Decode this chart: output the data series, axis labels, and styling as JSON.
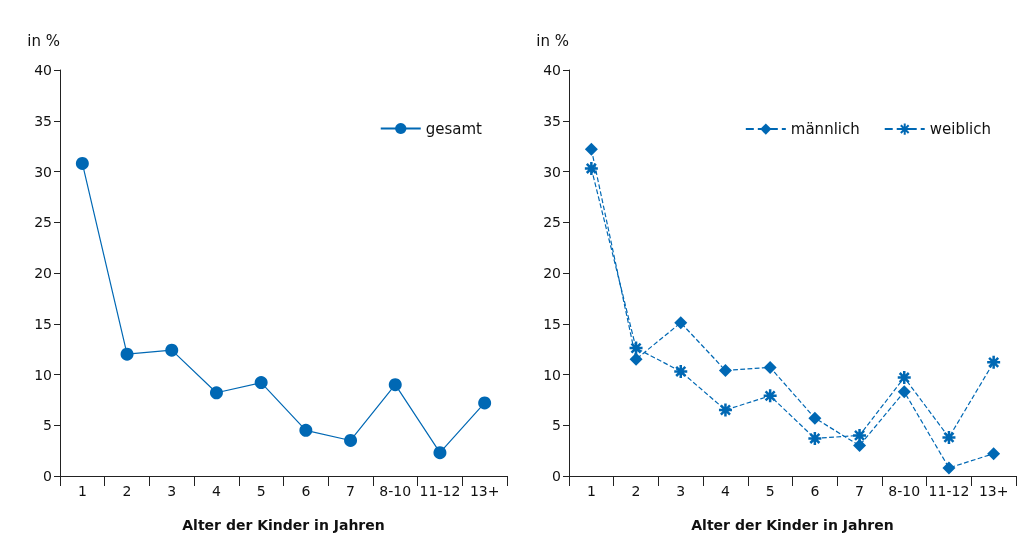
{
  "chart_data": [
    {
      "type": "line",
      "ylabel": "in %",
      "xlabel": "Alter der Kinder in Jahren",
      "categories": [
        "1",
        "2",
        "3",
        "4",
        "5",
        "6",
        "7",
        "8-10",
        "11-12",
        "13+"
      ],
      "series": [
        {
          "name": "gesamt",
          "color": "#0068b4",
          "values": [
            30.8,
            12.0,
            12.4,
            8.2,
            9.2,
            4.5,
            3.5,
            9.0,
            2.3,
            7.2
          ]
        }
      ],
      "ylim": [
        0,
        40
      ],
      "yticks": [
        0,
        5,
        10,
        15,
        20,
        25,
        30,
        35,
        40
      ],
      "grid": false,
      "legend": "top right",
      "marker": "circle",
      "line_style": "solid"
    },
    {
      "type": "line",
      "ylabel": "in %",
      "xlabel": "Alter der Kinder in Jahren",
      "categories": [
        "1",
        "2",
        "3",
        "4",
        "5",
        "6",
        "7",
        "8-10",
        "11-12",
        "13+"
      ],
      "series": [
        {
          "name": "männlich",
          "color": "#0068b4",
          "marker": "diamond",
          "values": [
            32.2,
            11.5,
            15.1,
            10.4,
            10.7,
            5.7,
            3.0,
            8.3,
            0.8,
            2.2
          ]
        },
        {
          "name": "weiblich",
          "color": "#0068b4",
          "marker": "cross",
          "values": [
            30.3,
            12.6,
            10.3,
            6.5,
            7.9,
            3.7,
            4.0,
            9.7,
            3.8,
            11.2
          ]
        }
      ],
      "ylim": [
        0,
        40
      ],
      "yticks": [
        0,
        5,
        10,
        15,
        20,
        25,
        30,
        35,
        40
      ],
      "grid": false,
      "legend": "top right",
      "line_style": "dashed"
    }
  ]
}
